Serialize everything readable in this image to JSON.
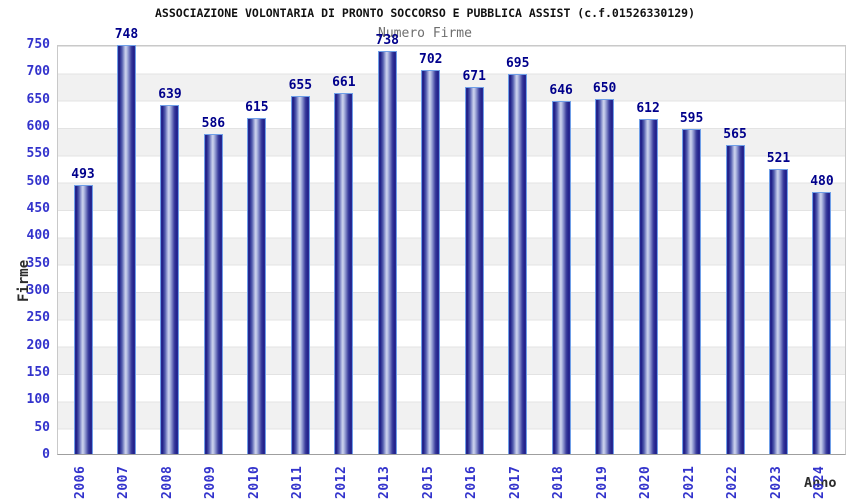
{
  "chart_data": {
    "type": "bar",
    "title": "ASSOCIAZIONE VOLONTARIA DI PRONTO SOCCORSO E PUBBLICA ASSIST (c.f.01526330129)",
    "subtitle": "Numero Firme",
    "xlabel": "Anno",
    "ylabel": "Firme",
    "categories": [
      "2006",
      "2007",
      "2008",
      "2009",
      "2010",
      "2011",
      "2012",
      "2013",
      "2015",
      "2016",
      "2017",
      "2018",
      "2019",
      "2020",
      "2021",
      "2022",
      "2023",
      "2024"
    ],
    "values": [
      493,
      748,
      639,
      586,
      615,
      655,
      661,
      738,
      702,
      671,
      695,
      646,
      650,
      612,
      595,
      565,
      521,
      480
    ],
    "ylim": [
      0,
      750
    ],
    "y_ticks": [
      0,
      50,
      100,
      150,
      200,
      250,
      300,
      350,
      400,
      450,
      500,
      550,
      600,
      650,
      700,
      750
    ],
    "grid": true,
    "legend": "none",
    "colors": {
      "bar_dark": "#23238c",
      "bar_light": "#ced4ee",
      "bar_border": "#6f9fe8",
      "value_label": "#00008b",
      "tick_label": "#3333cc",
      "band_gray": "#f1f1f1",
      "gridline": "#e3e3e3",
      "title_text": "#111111",
      "subtitle_text": "#6e6e6e"
    }
  }
}
